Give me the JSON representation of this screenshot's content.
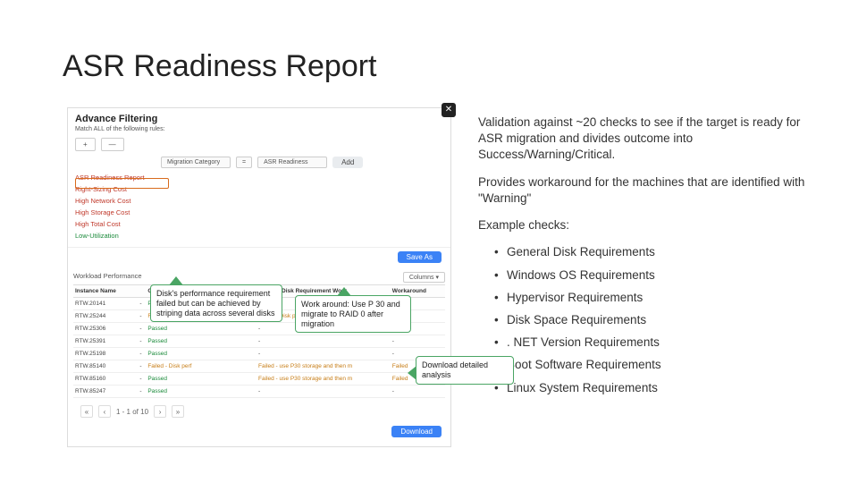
{
  "title": "ASR Readiness Report",
  "app": {
    "filter_title": "Advance Filtering",
    "filter_sub": "Match ALL of the following rules:",
    "plus": "+",
    "dash": "—",
    "sel_category_label": "Migration Category",
    "sel_op": "=",
    "sel_value": "ASR Readiness",
    "add_label": "Add",
    "rules": [
      {
        "label": "ASR Readiness Report",
        "cls": "rule-red"
      },
      {
        "label": "Right-Sizing Cost",
        "cls": "rule-red"
      },
      {
        "label": "High Network Cost",
        "cls": "rule-red"
      },
      {
        "label": "High Storage Cost",
        "cls": "rule-red"
      },
      {
        "label": "High Total Cost",
        "cls": "rule-red"
      },
      {
        "label": "Low-Utilization",
        "cls": "rule-green"
      }
    ],
    "save_as": "Save As",
    "table_title": "Workload Performance",
    "columns_btn": "Columns ▾",
    "headers": [
      "Instance Name",
      "",
      "General Disk Requirement",
      "General Disk Requirement Work",
      "Workaround"
    ],
    "rows": [
      [
        "RTW.20141",
        "-",
        "Passed",
        "-",
        "-"
      ],
      [
        "RTW.25244",
        "-",
        "Failed - Disk performa",
        "Failed - Disk performa",
        "-"
      ],
      [
        "RTW.25306",
        "-",
        "Passed",
        "-",
        "-"
      ],
      [
        "RTW.25391",
        "-",
        "Passed",
        "-",
        "-"
      ],
      [
        "RTW.25198",
        "-",
        "Passed",
        "-",
        "-"
      ],
      [
        "RTW.85140",
        "-",
        "Failed - Disk perf",
        "Failed - use P30 storage and then m",
        "Failed"
      ],
      [
        "RTW.85160",
        "-",
        "Passed",
        "Failed - use P30 storage and then m",
        "Failed"
      ],
      [
        "RTW.85247",
        "-",
        "Passed",
        "-",
        "-"
      ]
    ],
    "status_pass": "Passed",
    "pager_text": "1 - 1 of 10",
    "download": "Download"
  },
  "right": {
    "p1": "Validation against ~20 checks to see if the target is ready for ASR migration and divides outcome into  Success/Warning/Critical.",
    "p2": "Provides workaround for the machines that are identified with \"Warning\"",
    "p3": "Example checks:",
    "checks": [
      "General Disk Requirements",
      "Windows OS Requirements",
      "Hypervisor Requirements",
      "Disk Space Requirements",
      ". NET Version Requirements",
      "Boot Software Requirements",
      "Linux System Requirements"
    ]
  },
  "callouts": {
    "c1": "Disk's performance requirement failed but can be achieved by striping data across several disks",
    "c2": "Work around: Use P 30 and migrate to RAID 0 after migration",
    "c3": "Download detailed analysis"
  }
}
